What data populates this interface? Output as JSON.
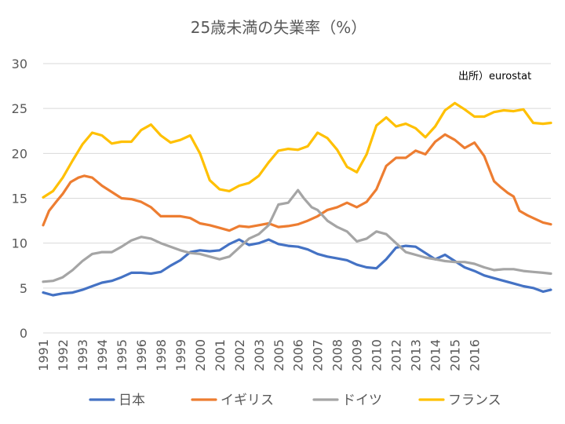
{
  "chart_data": {
    "type": "line",
    "title": "25歳未満の失業率（%）",
    "annotation": "出所）eurostat",
    "xlabel": "",
    "ylabel": "",
    "ylim": [
      0,
      30
    ],
    "yticks": [
      0,
      5,
      10,
      15,
      20,
      25,
      30
    ],
    "xlim": [
      1991.0,
      2016.9
    ],
    "xticks": [
      {
        "pos": 1991,
        "label": "1991"
      },
      {
        "pos": 1992,
        "label": "1992"
      },
      {
        "pos": 1993,
        "label": "1993"
      },
      {
        "pos": 1994,
        "label": "1994"
      },
      {
        "pos": 1995,
        "label": "1995"
      },
      {
        "pos": 1996,
        "label": "1996"
      },
      {
        "pos": 1997,
        "label": "1998"
      },
      {
        "pos": 1998,
        "label": "1999"
      },
      {
        "pos": 1999,
        "label": "2000"
      },
      {
        "pos": 2000,
        "label": "2001"
      },
      {
        "pos": 2001,
        "label": "2002"
      },
      {
        "pos": 2002,
        "label": "2003"
      },
      {
        "pos": 2003,
        "label": "2005"
      },
      {
        "pos": 2004,
        "label": "2006"
      },
      {
        "pos": 2005,
        "label": "2007"
      },
      {
        "pos": 2006,
        "label": "2008"
      },
      {
        "pos": 2007,
        "label": "2009"
      },
      {
        "pos": 2008,
        "label": "2010"
      },
      {
        "pos": 2009,
        "label": "2012"
      },
      {
        "pos": 2010,
        "label": "2013"
      },
      {
        "pos": 2011,
        "label": "2014"
      },
      {
        "pos": 2012,
        "label": "2015"
      },
      {
        "pos": 2013,
        "label": "2016"
      }
    ],
    "grid": true,
    "legend_position": "bottom",
    "series": [
      {
        "name": "日本",
        "color": "#4472C4",
        "points": [
          [
            1991.0,
            4.5
          ],
          [
            1991.5,
            4.2
          ],
          [
            1992.0,
            4.4
          ],
          [
            1992.5,
            4.5
          ],
          [
            1993.0,
            4.8
          ],
          [
            1993.5,
            5.2
          ],
          [
            1994.0,
            5.6
          ],
          [
            1994.5,
            5.8
          ],
          [
            1995.0,
            6.2
          ],
          [
            1995.5,
            6.7
          ],
          [
            1996.0,
            6.7
          ],
          [
            1996.5,
            6.6
          ],
          [
            1997.0,
            6.8
          ],
          [
            1997.5,
            7.5
          ],
          [
            1998.0,
            8.1
          ],
          [
            1998.5,
            9.0
          ],
          [
            1999.0,
            9.2
          ],
          [
            1999.5,
            9.1
          ],
          [
            2000.0,
            9.2
          ],
          [
            2000.5,
            9.9
          ],
          [
            2001.0,
            10.4
          ],
          [
            2001.5,
            9.8
          ],
          [
            2002.0,
            10.0
          ],
          [
            2002.5,
            10.4
          ],
          [
            2003.0,
            9.9
          ],
          [
            2003.5,
            9.7
          ],
          [
            2004.0,
            9.6
          ],
          [
            2004.5,
            9.3
          ],
          [
            2005.0,
            8.8
          ],
          [
            2005.5,
            8.5
          ],
          [
            2006.0,
            8.3
          ],
          [
            2006.5,
            8.1
          ],
          [
            2007.0,
            7.6
          ],
          [
            2007.5,
            7.3
          ],
          [
            2008.0,
            7.2
          ],
          [
            2008.5,
            8.2
          ],
          [
            2009.0,
            9.5
          ],
          [
            2009.5,
            9.7
          ],
          [
            2010.0,
            9.6
          ],
          [
            2010.5,
            8.9
          ],
          [
            2011.0,
            8.2
          ],
          [
            2011.5,
            8.7
          ],
          [
            2012.0,
            8.0
          ],
          [
            2012.5,
            7.3
          ],
          [
            2013.0,
            6.9
          ],
          [
            2013.5,
            6.4
          ],
          [
            2014.0,
            6.1
          ],
          [
            2014.5,
            5.8
          ],
          [
            2015.0,
            5.5
          ],
          [
            2015.5,
            5.2
          ],
          [
            2016.0,
            5.0
          ],
          [
            2016.5,
            4.6
          ],
          [
            2016.9,
            4.8
          ]
        ]
      },
      {
        "name": "イギリス",
        "color": "#ED7D31",
        "points": [
          [
            1991.0,
            12.0
          ],
          [
            1991.3,
            13.6
          ],
          [
            1991.7,
            14.7
          ],
          [
            1992.0,
            15.5
          ],
          [
            1992.4,
            16.8
          ],
          [
            1992.8,
            17.3
          ],
          [
            1993.1,
            17.5
          ],
          [
            1993.5,
            17.3
          ],
          [
            1994.0,
            16.4
          ],
          [
            1994.5,
            15.7
          ],
          [
            1995.0,
            15.0
          ],
          [
            1995.5,
            14.9
          ],
          [
            1996.0,
            14.6
          ],
          [
            1996.5,
            14.0
          ],
          [
            1997.0,
            13.0
          ],
          [
            1997.5,
            13.0
          ],
          [
            1998.0,
            13.0
          ],
          [
            1998.5,
            12.8
          ],
          [
            1999.0,
            12.2
          ],
          [
            1999.5,
            12.0
          ],
          [
            2000.0,
            11.7
          ],
          [
            2000.5,
            11.4
          ],
          [
            2001.0,
            11.9
          ],
          [
            2001.5,
            11.8
          ],
          [
            2002.0,
            12.0
          ],
          [
            2002.5,
            12.2
          ],
          [
            2003.0,
            11.8
          ],
          [
            2003.5,
            11.9
          ],
          [
            2004.0,
            12.1
          ],
          [
            2004.5,
            12.5
          ],
          [
            2005.0,
            13.0
          ],
          [
            2005.5,
            13.7
          ],
          [
            2006.0,
            14.0
          ],
          [
            2006.5,
            14.5
          ],
          [
            2007.0,
            14.0
          ],
          [
            2007.5,
            14.6
          ],
          [
            2008.0,
            16.0
          ],
          [
            2008.5,
            18.6
          ],
          [
            2009.0,
            19.5
          ],
          [
            2009.5,
            19.5
          ],
          [
            2010.0,
            20.3
          ],
          [
            2010.5,
            19.9
          ],
          [
            2011.0,
            21.3
          ],
          [
            2011.5,
            22.1
          ],
          [
            2012.0,
            21.5
          ],
          [
            2012.5,
            20.6
          ],
          [
            2013.0,
            21.2
          ],
          [
            2013.5,
            19.7
          ],
          [
            2014.0,
            16.9
          ],
          [
            2014.3,
            16.3
          ],
          [
            2014.7,
            15.6
          ],
          [
            2015.0,
            15.2
          ],
          [
            2015.3,
            13.6
          ],
          [
            2015.7,
            13.1
          ],
          [
            2016.0,
            12.8
          ],
          [
            2016.5,
            12.3
          ],
          [
            2016.9,
            12.1
          ]
        ]
      },
      {
        "name": "ドイツ",
        "color": "#A5A5A5",
        "points": [
          [
            1991.0,
            5.7
          ],
          [
            1991.5,
            5.8
          ],
          [
            1992.0,
            6.2
          ],
          [
            1992.5,
            7.0
          ],
          [
            1993.0,
            8.0
          ],
          [
            1993.5,
            8.8
          ],
          [
            1994.0,
            9.0
          ],
          [
            1994.5,
            9.0
          ],
          [
            1995.0,
            9.6
          ],
          [
            1995.5,
            10.3
          ],
          [
            1996.0,
            10.7
          ],
          [
            1996.5,
            10.5
          ],
          [
            1997.0,
            10.0
          ],
          [
            1997.5,
            9.6
          ],
          [
            1998.0,
            9.2
          ],
          [
            1998.5,
            8.9
          ],
          [
            1999.0,
            8.8
          ],
          [
            1999.5,
            8.5
          ],
          [
            2000.0,
            8.2
          ],
          [
            2000.5,
            8.5
          ],
          [
            2001.0,
            9.5
          ],
          [
            2001.5,
            10.5
          ],
          [
            2002.0,
            11.0
          ],
          [
            2002.5,
            12.0
          ],
          [
            2003.0,
            14.3
          ],
          [
            2003.5,
            14.5
          ],
          [
            2004.0,
            15.9
          ],
          [
            2004.3,
            15.0
          ],
          [
            2004.7,
            14.0
          ],
          [
            2005.0,
            13.7
          ],
          [
            2005.5,
            12.5
          ],
          [
            2006.0,
            11.8
          ],
          [
            2006.5,
            11.3
          ],
          [
            2007.0,
            10.2
          ],
          [
            2007.5,
            10.5
          ],
          [
            2008.0,
            11.3
          ],
          [
            2008.5,
            11.0
          ],
          [
            2009.0,
            10.0
          ],
          [
            2009.5,
            9.0
          ],
          [
            2010.0,
            8.7
          ],
          [
            2010.5,
            8.4
          ],
          [
            2011.0,
            8.2
          ],
          [
            2011.5,
            8.0
          ],
          [
            2012.0,
            7.9
          ],
          [
            2012.5,
            7.9
          ],
          [
            2013.0,
            7.7
          ],
          [
            2013.5,
            7.3
          ],
          [
            2014.0,
            7.0
          ],
          [
            2014.5,
            7.1
          ],
          [
            2015.0,
            7.1
          ],
          [
            2015.5,
            6.9
          ],
          [
            2016.0,
            6.8
          ],
          [
            2016.5,
            6.7
          ],
          [
            2016.9,
            6.6
          ]
        ]
      },
      {
        "name": "フランス",
        "color": "#FFC000",
        "points": [
          [
            1991.0,
            15.1
          ],
          [
            1991.5,
            15.8
          ],
          [
            1992.0,
            17.3
          ],
          [
            1992.5,
            19.2
          ],
          [
            1993.0,
            21.0
          ],
          [
            1993.5,
            22.3
          ],
          [
            1994.0,
            22.0
          ],
          [
            1994.5,
            21.1
          ],
          [
            1995.0,
            21.3
          ],
          [
            1995.5,
            21.3
          ],
          [
            1996.0,
            22.6
          ],
          [
            1996.5,
            23.2
          ],
          [
            1997.0,
            22.0
          ],
          [
            1997.5,
            21.2
          ],
          [
            1998.0,
            21.5
          ],
          [
            1998.5,
            22.0
          ],
          [
            1999.0,
            20.0
          ],
          [
            1999.5,
            17.0
          ],
          [
            2000.0,
            16.0
          ],
          [
            2000.5,
            15.8
          ],
          [
            2001.0,
            16.4
          ],
          [
            2001.5,
            16.7
          ],
          [
            2002.0,
            17.5
          ],
          [
            2002.5,
            19.0
          ],
          [
            2003.0,
            20.3
          ],
          [
            2003.5,
            20.5
          ],
          [
            2004.0,
            20.4
          ],
          [
            2004.5,
            20.8
          ],
          [
            2005.0,
            22.3
          ],
          [
            2005.5,
            21.7
          ],
          [
            2006.0,
            20.4
          ],
          [
            2006.5,
            18.5
          ],
          [
            2007.0,
            17.9
          ],
          [
            2007.5,
            19.9
          ],
          [
            2008.0,
            23.1
          ],
          [
            2008.5,
            24.0
          ],
          [
            2009.0,
            23.0
          ],
          [
            2009.5,
            23.3
          ],
          [
            2010.0,
            22.8
          ],
          [
            2010.5,
            21.8
          ],
          [
            2011.0,
            23.0
          ],
          [
            2011.5,
            24.8
          ],
          [
            2012.0,
            25.6
          ],
          [
            2012.5,
            24.9
          ],
          [
            2013.0,
            24.1
          ],
          [
            2013.5,
            24.1
          ],
          [
            2014.0,
            24.6
          ],
          [
            2014.5,
            24.8
          ],
          [
            2015.0,
            24.7
          ],
          [
            2015.5,
            24.9
          ],
          [
            2016.0,
            23.4
          ],
          [
            2016.5,
            23.3
          ],
          [
            2016.9,
            23.4
          ]
        ]
      }
    ]
  }
}
